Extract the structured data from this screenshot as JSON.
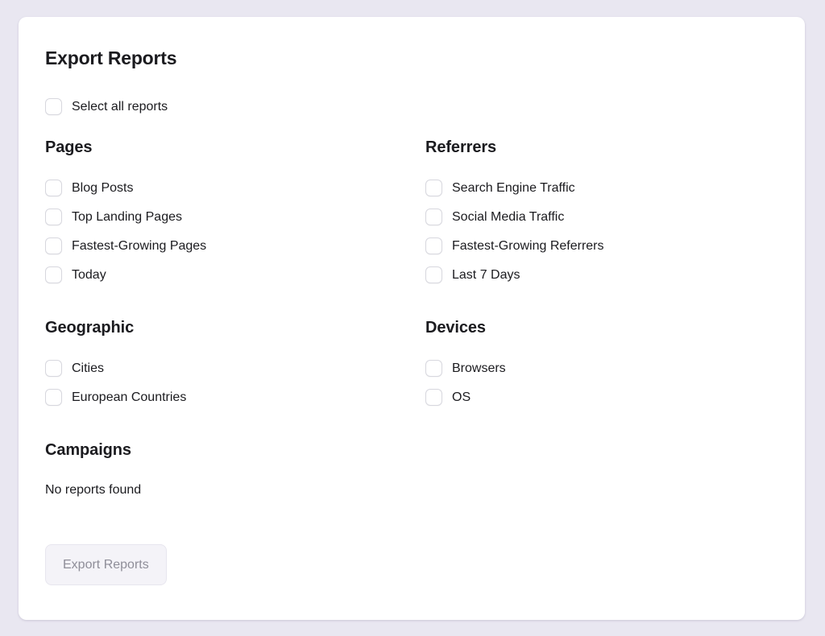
{
  "page": {
    "title": "Export Reports",
    "select_all_label": "Select all reports",
    "export_button_label": "Export Reports"
  },
  "sections": [
    {
      "heading": "Pages",
      "items": [
        "Blog Posts",
        "Top Landing Pages",
        "Fastest-Growing Pages",
        "Today"
      ]
    },
    {
      "heading": "Referrers",
      "items": [
        "Search Engine Traffic",
        "Social Media Traffic",
        "Fastest-Growing Referrers",
        "Last 7 Days"
      ]
    },
    {
      "heading": "Geographic",
      "items": [
        "Cities",
        "European Countries"
      ]
    },
    {
      "heading": "Devices",
      "items": [
        "Browsers",
        "OS"
      ]
    },
    {
      "heading": "Campaigns",
      "items": [],
      "empty_text": "No reports found"
    }
  ],
  "checkboxes_checked": false,
  "colors": {
    "page_background": "#e9e7f1",
    "card_background": "#ffffff",
    "text": "#1b1b1f",
    "checkbox_border": "#d7d7de",
    "button_background": "#f4f3f8",
    "button_border": "#e7e6ee",
    "button_text": "#8f8e99"
  }
}
